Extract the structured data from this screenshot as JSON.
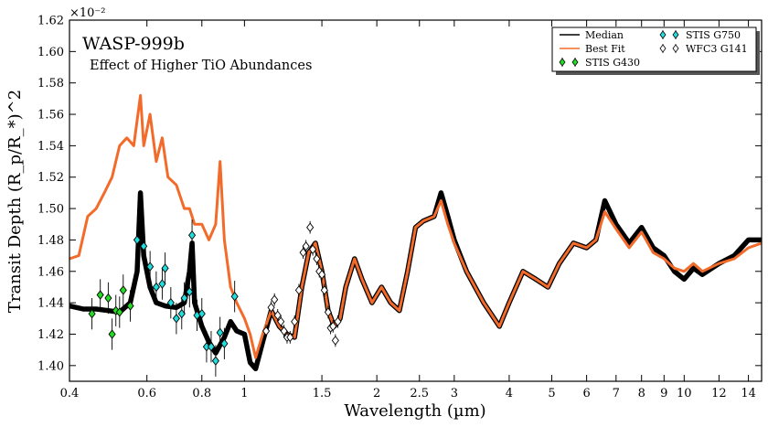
{
  "chart_data": {
    "type": "line",
    "title": "WASP-999b",
    "subtitle": "Effect of Higher TiO Abundances",
    "xlabel": "Wavelength (µm)",
    "ylabel": "Transit Depth (R_p/R_*)^2",
    "y_scale_label": "×10⁻²",
    "x_scale": "log",
    "xlim": [
      0.4,
      15
    ],
    "ylim": [
      1.39,
      1.62
    ],
    "x_ticks": [
      0.4,
      0.6,
      0.8,
      1,
      1.5,
      2,
      2.5,
      3,
      4,
      5,
      6,
      7,
      8,
      9,
      10,
      12,
      14
    ],
    "x_tick_labels": [
      "0.4",
      "0.6",
      "0.8",
      "1",
      "1.5",
      "2",
      "2.5",
      "3",
      "4",
      "5",
      "6",
      "7",
      "8",
      "9",
      "10",
      "12",
      "14"
    ],
    "y_ticks": [
      1.4,
      1.42,
      1.44,
      1.46,
      1.48,
      1.5,
      1.52,
      1.54,
      1.56,
      1.58,
      1.6,
      1.62
    ],
    "y_tick_labels": [
      "1.40",
      "1.42",
      "1.44",
      "1.46",
      "1.48",
      "1.50",
      "1.52",
      "1.54",
      "1.56",
      "1.58",
      "1.60",
      "1.62"
    ],
    "legend_position": "top-right",
    "series": [
      {
        "name": "Median",
        "kind": "line",
        "color": "#000000",
        "points": [
          [
            0.4,
            1.438
          ],
          [
            0.43,
            1.436
          ],
          [
            0.46,
            1.436
          ],
          [
            0.49,
            1.435
          ],
          [
            0.52,
            1.434
          ],
          [
            0.55,
            1.44
          ],
          [
            0.57,
            1.46
          ],
          [
            0.58,
            1.51
          ],
          [
            0.59,
            1.47
          ],
          [
            0.61,
            1.45
          ],
          [
            0.63,
            1.44
          ],
          [
            0.66,
            1.438
          ],
          [
            0.7,
            1.437
          ],
          [
            0.73,
            1.44
          ],
          [
            0.75,
            1.46
          ],
          [
            0.76,
            1.478
          ],
          [
            0.77,
            1.44
          ],
          [
            0.8,
            1.425
          ],
          [
            0.83,
            1.415
          ],
          [
            0.86,
            1.408
          ],
          [
            0.9,
            1.418
          ],
          [
            0.93,
            1.428
          ],
          [
            0.96,
            1.422
          ],
          [
            1.0,
            1.42
          ],
          [
            1.03,
            1.402
          ],
          [
            1.06,
            1.398
          ],
          [
            1.1,
            1.415
          ],
          [
            1.15,
            1.435
          ],
          [
            1.2,
            1.425
          ],
          [
            1.25,
            1.42
          ],
          [
            1.3,
            1.418
          ],
          [
            1.35,
            1.45
          ],
          [
            1.4,
            1.472
          ],
          [
            1.45,
            1.478
          ],
          [
            1.5,
            1.46
          ],
          [
            1.55,
            1.435
          ],
          [
            1.6,
            1.425
          ],
          [
            1.65,
            1.43
          ],
          [
            1.7,
            1.45
          ],
          [
            1.78,
            1.468
          ],
          [
            1.85,
            1.455
          ],
          [
            1.95,
            1.44
          ],
          [
            2.05,
            1.45
          ],
          [
            2.15,
            1.44
          ],
          [
            2.25,
            1.435
          ],
          [
            2.35,
            1.46
          ],
          [
            2.45,
            1.488
          ],
          [
            2.55,
            1.492
          ],
          [
            2.7,
            1.495
          ],
          [
            2.8,
            1.51
          ],
          [
            2.9,
            1.495
          ],
          [
            3.0,
            1.48
          ],
          [
            3.2,
            1.46
          ],
          [
            3.5,
            1.44
          ],
          [
            3.8,
            1.425
          ],
          [
            4.0,
            1.44
          ],
          [
            4.3,
            1.46
          ],
          [
            4.6,
            1.455
          ],
          [
            4.9,
            1.45
          ],
          [
            5.2,
            1.465
          ],
          [
            5.6,
            1.478
          ],
          [
            6.0,
            1.475
          ],
          [
            6.3,
            1.48
          ],
          [
            6.6,
            1.505
          ],
          [
            7.0,
            1.49
          ],
          [
            7.5,
            1.478
          ],
          [
            8.0,
            1.488
          ],
          [
            8.5,
            1.475
          ],
          [
            9.0,
            1.47
          ],
          [
            9.5,
            1.46
          ],
          [
            10.0,
            1.455
          ],
          [
            10.5,
            1.462
          ],
          [
            11.0,
            1.458
          ],
          [
            12.0,
            1.465
          ],
          [
            13.0,
            1.47
          ],
          [
            14.0,
            1.48
          ],
          [
            15.0,
            1.48
          ]
        ]
      },
      {
        "name": "Best Fit",
        "kind": "line",
        "color": "#f26b2a",
        "points": [
          [
            0.4,
            1.468
          ],
          [
            0.42,
            1.47
          ],
          [
            0.44,
            1.495
          ],
          [
            0.46,
            1.5
          ],
          [
            0.48,
            1.51
          ],
          [
            0.5,
            1.52
          ],
          [
            0.52,
            1.54
          ],
          [
            0.54,
            1.545
          ],
          [
            0.56,
            1.54
          ],
          [
            0.58,
            1.572
          ],
          [
            0.59,
            1.54
          ],
          [
            0.61,
            1.56
          ],
          [
            0.63,
            1.53
          ],
          [
            0.65,
            1.545
          ],
          [
            0.67,
            1.52
          ],
          [
            0.7,
            1.515
          ],
          [
            0.73,
            1.5
          ],
          [
            0.75,
            1.5
          ],
          [
            0.77,
            1.49
          ],
          [
            0.8,
            1.49
          ],
          [
            0.83,
            1.48
          ],
          [
            0.86,
            1.49
          ],
          [
            0.88,
            1.53
          ],
          [
            0.9,
            1.48
          ],
          [
            0.93,
            1.45
          ],
          [
            0.96,
            1.44
          ],
          [
            1.0,
            1.43
          ],
          [
            1.03,
            1.42
          ],
          [
            1.06,
            1.405
          ],
          [
            1.1,
            1.42
          ],
          [
            1.15,
            1.435
          ],
          [
            1.2,
            1.425
          ],
          [
            1.25,
            1.42
          ],
          [
            1.3,
            1.418
          ],
          [
            1.35,
            1.45
          ],
          [
            1.4,
            1.472
          ],
          [
            1.45,
            1.478
          ],
          [
            1.5,
            1.46
          ],
          [
            1.55,
            1.435
          ],
          [
            1.6,
            1.425
          ],
          [
            1.65,
            1.43
          ],
          [
            1.7,
            1.45
          ],
          [
            1.78,
            1.468
          ],
          [
            1.85,
            1.455
          ],
          [
            1.95,
            1.44
          ],
          [
            2.05,
            1.45
          ],
          [
            2.15,
            1.44
          ],
          [
            2.25,
            1.435
          ],
          [
            2.35,
            1.46
          ],
          [
            2.45,
            1.488
          ],
          [
            2.55,
            1.492
          ],
          [
            2.7,
            1.495
          ],
          [
            2.8,
            1.505
          ],
          [
            2.9,
            1.49
          ],
          [
            3.0,
            1.478
          ],
          [
            3.2,
            1.46
          ],
          [
            3.5,
            1.44
          ],
          [
            3.8,
            1.425
          ],
          [
            4.0,
            1.44
          ],
          [
            4.3,
            1.46
          ],
          [
            4.6,
            1.455
          ],
          [
            4.9,
            1.45
          ],
          [
            5.2,
            1.465
          ],
          [
            5.6,
            1.478
          ],
          [
            6.0,
            1.475
          ],
          [
            6.3,
            1.48
          ],
          [
            6.6,
            1.498
          ],
          [
            7.0,
            1.487
          ],
          [
            7.5,
            1.475
          ],
          [
            8.0,
            1.485
          ],
          [
            8.5,
            1.472
          ],
          [
            9.0,
            1.468
          ],
          [
            9.5,
            1.462
          ],
          [
            10.0,
            1.46
          ],
          [
            10.5,
            1.465
          ],
          [
            11.0,
            1.46
          ],
          [
            12.0,
            1.465
          ],
          [
            13.0,
            1.468
          ],
          [
            14.0,
            1.475
          ],
          [
            15.0,
            1.478
          ]
        ]
      },
      {
        "name": "STIS G430",
        "kind": "errorbar",
        "color": "#22dd22",
        "points": [
          [
            0.45,
            1.433,
            0.01
          ],
          [
            0.47,
            1.445,
            0.01
          ],
          [
            0.49,
            1.443,
            0.01
          ],
          [
            0.5,
            1.42,
            0.01
          ],
          [
            0.51,
            1.435,
            0.01
          ],
          [
            0.52,
            1.434,
            0.01
          ],
          [
            0.53,
            1.448,
            0.01
          ],
          [
            0.55,
            1.438,
            0.01
          ]
        ]
      },
      {
        "name": "STIS G750",
        "kind": "errorbar",
        "color": "#22dddd",
        "points": [
          [
            0.57,
            1.48,
            0.01
          ],
          [
            0.59,
            1.476,
            0.01
          ],
          [
            0.61,
            1.463,
            0.01
          ],
          [
            0.63,
            1.45,
            0.01
          ],
          [
            0.65,
            1.452,
            0.01
          ],
          [
            0.66,
            1.462,
            0.01
          ],
          [
            0.68,
            1.44,
            0.01
          ],
          [
            0.7,
            1.43,
            0.01
          ],
          [
            0.72,
            1.433,
            0.01
          ],
          [
            0.73,
            1.443,
            0.01
          ],
          [
            0.75,
            1.447,
            0.01
          ],
          [
            0.76,
            1.483,
            0.01
          ],
          [
            0.78,
            1.432,
            0.01
          ],
          [
            0.8,
            1.433,
            0.01
          ],
          [
            0.82,
            1.412,
            0.01
          ],
          [
            0.84,
            1.412,
            0.01
          ],
          [
            0.86,
            1.403,
            0.01
          ],
          [
            0.88,
            1.421,
            0.01
          ],
          [
            0.9,
            1.414,
            0.01
          ],
          [
            0.95,
            1.444,
            0.01
          ]
        ]
      },
      {
        "name": "WFC3 G141",
        "kind": "errorbar",
        "color": "#ffffff",
        "points": [
          [
            1.12,
            1.422,
            0.004
          ],
          [
            1.15,
            1.437,
            0.004
          ],
          [
            1.17,
            1.442,
            0.004
          ],
          [
            1.19,
            1.432,
            0.004
          ],
          [
            1.21,
            1.428,
            0.004
          ],
          [
            1.23,
            1.422,
            0.004
          ],
          [
            1.25,
            1.418,
            0.004
          ],
          [
            1.27,
            1.418,
            0.004
          ],
          [
            1.3,
            1.428,
            0.004
          ],
          [
            1.33,
            1.448,
            0.004
          ],
          [
            1.36,
            1.472,
            0.004
          ],
          [
            1.38,
            1.476,
            0.004
          ],
          [
            1.41,
            1.488,
            0.004
          ],
          [
            1.43,
            1.474,
            0.004
          ],
          [
            1.46,
            1.468,
            0.004
          ],
          [
            1.48,
            1.46,
            0.004
          ],
          [
            1.5,
            1.458,
            0.004
          ],
          [
            1.52,
            1.448,
            0.004
          ],
          [
            1.55,
            1.434,
            0.004
          ],
          [
            1.57,
            1.424,
            0.004
          ],
          [
            1.59,
            1.425,
            0.004
          ],
          [
            1.61,
            1.416,
            0.004
          ],
          [
            1.63,
            1.428,
            0.004
          ]
        ]
      }
    ]
  }
}
